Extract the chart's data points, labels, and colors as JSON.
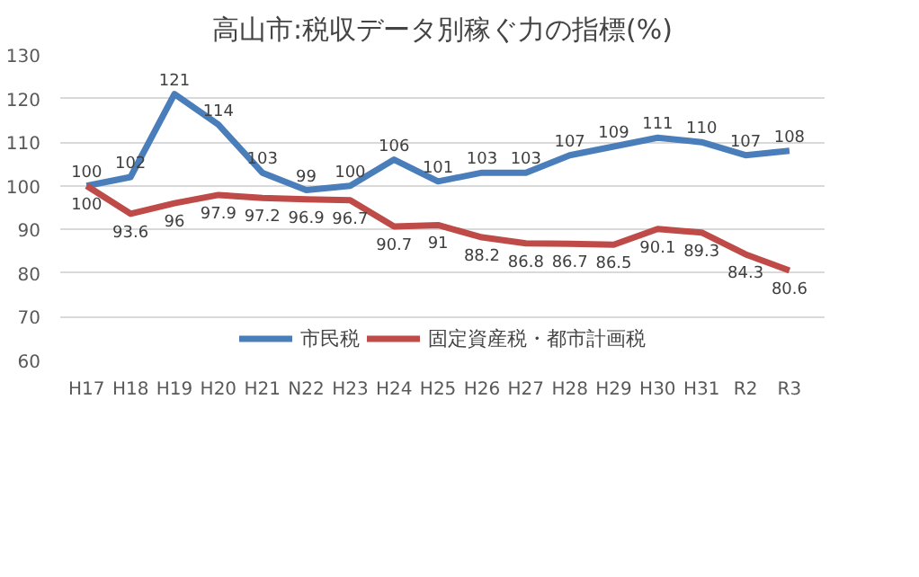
{
  "chart_data": {
    "type": "line",
    "title": "高山市:税収データ別稼ぐ力の指標(%)",
    "categories": [
      "H17",
      "H18",
      "H19",
      "H20",
      "H21",
      "N22",
      "H23",
      "H24",
      "H25",
      "H26",
      "H27",
      "H28",
      "H29",
      "H30",
      "H31",
      "R2",
      "R3"
    ],
    "series": [
      {
        "name": "市民税",
        "color": "#4a7ebb",
        "values": [
          100,
          102,
          121,
          114,
          103,
          99,
          100,
          106,
          101,
          103,
          103,
          107,
          109,
          111,
          110,
          107,
          108
        ]
      },
      {
        "name": "固定資産税・都市計画税",
        "color": "#be4b48",
        "values": [
          100,
          93.6,
          96,
          97.9,
          97.2,
          96.9,
          96.7,
          90.7,
          91,
          88.2,
          86.8,
          86.7,
          86.5,
          90.1,
          89.3,
          84.3,
          80.6
        ]
      }
    ],
    "ylim": [
      60,
      130
    ],
    "yticks": [
      60,
      70,
      80,
      90,
      100,
      110,
      120,
      130
    ],
    "grid": "y",
    "legend": "bottom",
    "data_labels": true,
    "marker": "none",
    "line_style": "solid"
  }
}
